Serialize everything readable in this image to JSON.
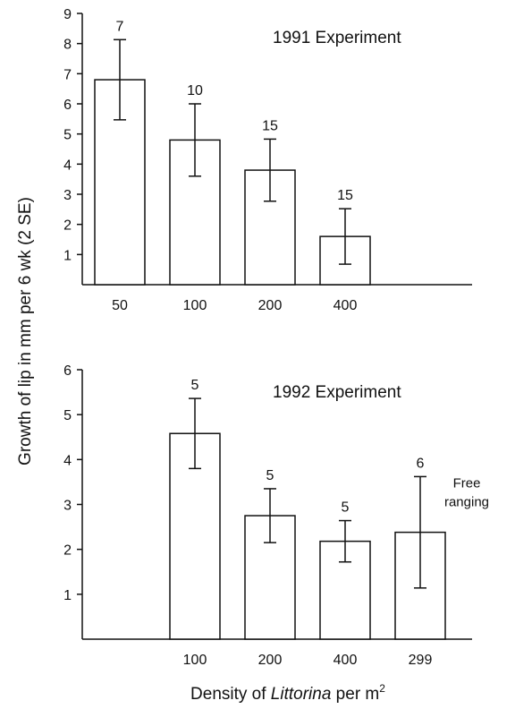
{
  "ylabel": "Growth of lip in mm per 6 wk (2 SE)",
  "xlabel": {
    "prefix": "Density of ",
    "italic": "Littorina",
    "suffix": " per m",
    "sup": "2"
  },
  "chart_data": [
    {
      "type": "bar",
      "title": "1991 Experiment",
      "categories": [
        "50",
        "100",
        "200",
        "400",
        ""
      ],
      "values": [
        6.8,
        4.8,
        3.8,
        1.6,
        null
      ],
      "error_2se": [
        1.33,
        1.2,
        1.03,
        0.92,
        null
      ],
      "n_labels": [
        "7",
        "10",
        "15",
        "15",
        ""
      ],
      "ylim": [
        0,
        9
      ],
      "yticks": [
        "1",
        "2",
        "3",
        "4",
        "5",
        "6",
        "7",
        "8",
        "9"
      ],
      "grid": false
    },
    {
      "type": "bar",
      "title": "1992 Experiment",
      "categories": [
        "",
        "100",
        "200",
        "400",
        "299"
      ],
      "values": [
        null,
        4.58,
        2.75,
        2.18,
        2.38
      ],
      "error_2se": [
        null,
        0.78,
        0.6,
        0.46,
        1.24
      ],
      "n_labels": [
        "",
        "5",
        "5",
        "5",
        "6"
      ],
      "bar_note": {
        "index": 4,
        "lines": [
          "Free",
          "ranging"
        ]
      },
      "ylim": [
        0,
        6
      ],
      "yticks": [
        "1",
        "2",
        "3",
        "4",
        "5",
        "6"
      ],
      "grid": false
    }
  ]
}
